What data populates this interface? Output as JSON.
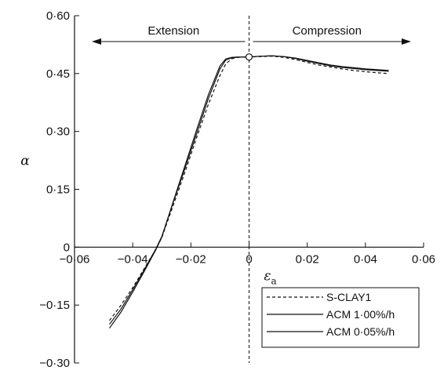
{
  "chart_data": {
    "type": "line",
    "xlim": [
      -0.06,
      0.06
    ],
    "ylim": [
      -0.3,
      0.6
    ],
    "xticks": [
      -0.06,
      -0.04,
      -0.02,
      0,
      0.02,
      0.04,
      0.06
    ],
    "xtick_labels": [
      "−0·06",
      "−0·04",
      "−0·02",
      "0",
      "0·02",
      "0·04",
      "0·06"
    ],
    "yticks": [
      -0.3,
      -0.15,
      0,
      0.15,
      0.3,
      0.45,
      0.6
    ],
    "ytick_labels": [
      "−0·30",
      "−0·15",
      "0",
      "0·15",
      "0·30",
      "0·45",
      "0·60"
    ],
    "xlabel_main": "ε",
    "xlabel_sub": "a",
    "ylabel": "α",
    "grid": false,
    "legend_position": "bottom-right",
    "annotations": {
      "left_arrow": "Extension",
      "right_arrow": "Compression"
    },
    "initial_point": {
      "x": 0,
      "y": 0.493
    },
    "series": [
      {
        "name": "S-CLAY1",
        "style": "dashed",
        "color": "#111111",
        "x": [
          -0.048,
          -0.044,
          -0.04,
          -0.036,
          -0.032,
          -0.03,
          -0.026,
          -0.022,
          -0.018,
          -0.014,
          -0.01,
          -0.008,
          -0.006,
          -0.004,
          -0.002,
          0,
          0.004,
          0.008,
          0.012,
          0.016,
          0.02,
          0.024,
          0.028,
          0.032,
          0.036,
          0.04,
          0.044,
          0.048
        ],
        "y": [
          -0.19,
          -0.15,
          -0.105,
          -0.055,
          -0.005,
          0.025,
          0.11,
          0.195,
          0.285,
          0.37,
          0.445,
          0.475,
          0.488,
          0.492,
          0.493,
          0.493,
          0.494,
          0.495,
          0.492,
          0.486,
          0.479,
          0.472,
          0.467,
          0.462,
          0.458,
          0.455,
          0.452,
          0.45
        ]
      },
      {
        "name": "ACM  1·00%/h",
        "style": "solid",
        "color": "#111111",
        "x": [
          -0.048,
          -0.044,
          -0.04,
          -0.036,
          -0.032,
          -0.03,
          -0.026,
          -0.022,
          -0.018,
          -0.014,
          -0.01,
          -0.008,
          -0.006,
          -0.004,
          -0.002,
          0,
          0.004,
          0.008,
          0.012,
          0.016,
          0.02,
          0.024,
          0.028,
          0.032,
          0.036,
          0.04,
          0.044,
          0.048
        ],
        "y": [
          -0.2,
          -0.16,
          -0.11,
          -0.058,
          -0.004,
          0.028,
          0.118,
          0.205,
          0.295,
          0.385,
          0.462,
          0.485,
          0.491,
          0.492,
          0.493,
          0.493,
          0.495,
          0.496,
          0.494,
          0.489,
          0.482,
          0.476,
          0.47,
          0.466,
          0.463,
          0.46,
          0.458,
          0.456
        ]
      },
      {
        "name": "ACM  0·05%/h",
        "style": "solid",
        "color": "#111111",
        "x": [
          -0.048,
          -0.044,
          -0.04,
          -0.036,
          -0.032,
          -0.03,
          -0.026,
          -0.022,
          -0.018,
          -0.014,
          -0.01,
          -0.008,
          -0.006,
          -0.004,
          -0.002,
          0,
          0.004,
          0.008,
          0.012,
          0.016,
          0.02,
          0.024,
          0.028,
          0.032,
          0.036,
          0.04,
          0.044,
          0.048
        ],
        "y": [
          -0.21,
          -0.168,
          -0.116,
          -0.062,
          -0.006,
          0.026,
          0.12,
          0.212,
          0.305,
          0.395,
          0.47,
          0.488,
          0.492,
          0.493,
          0.493,
          0.493,
          0.495,
          0.496,
          0.494,
          0.49,
          0.484,
          0.478,
          0.472,
          0.468,
          0.465,
          0.462,
          0.46,
          0.458
        ]
      }
    ]
  }
}
